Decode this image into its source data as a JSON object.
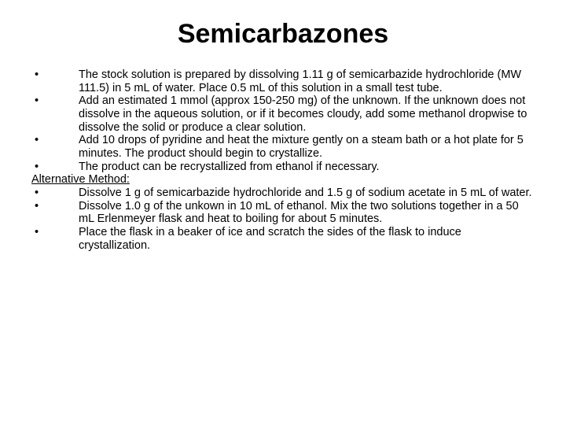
{
  "title": "Semicarbazones",
  "bullets_main": [
    "The stock solution is prepared by dissolving 1.11 g of semicarbazide hydrochloride (MW 111.5) in 5 mL of water.  Place 0.5 mL of this solution in a small test tube.",
    "Add an estimated 1 mmol (approx 150-250 mg) of the unknown. If the unknown does not dissolve in the aqueous solution, or if it becomes cloudy, add some methanol dropwise to dissolve the solid or produce a clear solution.",
    "Add 10 drops of pyridine and heat the mixture gently on a steam bath or a hot plate for 5 minutes. The product should begin to crystallize.",
    "The product can be recrystallized from ethanol if necessary."
  ],
  "alt_heading": "Alternative Method:",
  "bullets_alt": [
    "Dissolve 1 g of semicarbazide hydrochloride and 1.5 g of sodium acetate in 5 mL of water.",
    "Dissolve 1.0 g of the unkown in 10 mL of ethanol.  Mix the two solutions together in a 50 mL Erlenmeyer flask and heat to boiling for about 5 minutes.",
    "Place the flask in a beaker of ice and scratch the sides of the flask to induce crystallization."
  ],
  "bullet_char": "•"
}
